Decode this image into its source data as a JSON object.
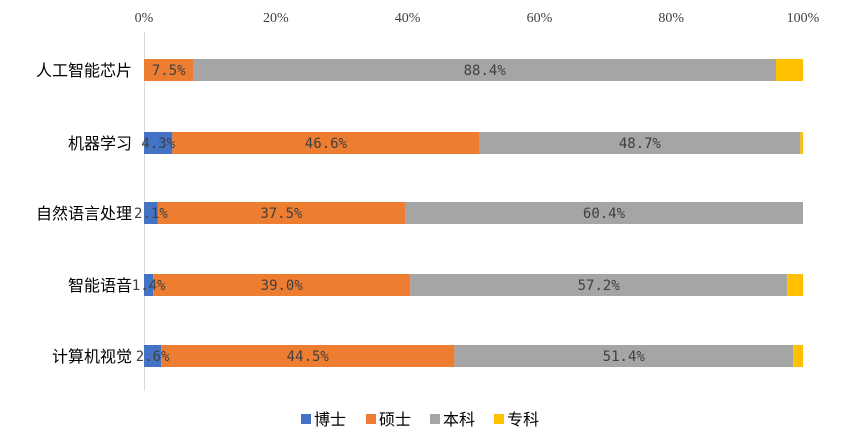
{
  "chart_data": {
    "type": "bar",
    "orientation": "horizontal",
    "stacked": "percent",
    "categories": [
      "人工智能芯片",
      "机器学习",
      "自然语言处理",
      "智能语音",
      "计算机视觉"
    ],
    "series": [
      {
        "name": "博士",
        "color": "#4472C4",
        "values": [
          0.0,
          4.3,
          2.1,
          1.4,
          2.6
        ]
      },
      {
        "name": "硕士",
        "color": "#ED7D31",
        "values": [
          7.5,
          46.6,
          37.5,
          39.0,
          44.5
        ]
      },
      {
        "name": "本科",
        "color": "#A5A5A5",
        "values": [
          88.4,
          48.7,
          60.4,
          57.2,
          51.4
        ]
      },
      {
        "name": "专科",
        "color": "#FFC000",
        "values": [
          4.1,
          0.4,
          0.0,
          2.4,
          1.5
        ]
      }
    ],
    "data_labels": [
      [
        "",
        "7.5%",
        "88.4%",
        ""
      ],
      [
        "4.3%",
        "46.6%",
        "48.7%",
        ""
      ],
      [
        "2.1%",
        "37.5%",
        "60.4%",
        ""
      ],
      [
        "1.4%",
        "39.0%",
        "57.2%",
        ""
      ],
      [
        "2.6%",
        "44.5%",
        "51.4%",
        ""
      ]
    ],
    "x_ticks": [
      "0%",
      "20%",
      "40%",
      "60%",
      "80%",
      "100%"
    ],
    "xlim": [
      0,
      100
    ],
    "x_axis_position": "top",
    "legend_position": "bottom",
    "grid": false
  }
}
